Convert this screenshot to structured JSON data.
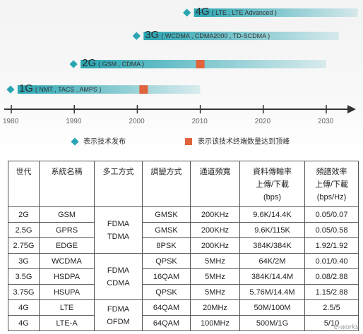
{
  "timeline": {
    "years": [
      "1980",
      "1990",
      "2000",
      "2010",
      "2020",
      "2030"
    ],
    "generations": [
      {
        "big": "1G",
        "detail": "( NMT , TACS , AMPS )",
        "start": 1981,
        "end": 2010,
        "peak": 2001
      },
      {
        "big": "2G",
        "detail": "( GSM , CDMA )",
        "start": 1991,
        "end": 2030,
        "peak": 2010
      },
      {
        "big": "3G",
        "detail": "( WCDMA , CDMA2000 , TD-SCDMA )",
        "start": 2001,
        "end": 2032,
        "peak": null
      },
      {
        "big": "4G",
        "detail": "( LTE , LTE Advanced )",
        "start": 2009,
        "end": 2035,
        "peak": null
      }
    ],
    "legend": {
      "diamond_label": "表示技术发布",
      "square_label": "表示该技术终端数量达到顶峰"
    },
    "colors": {
      "bar": "#2aa6b3",
      "peak": "#e0633c",
      "axis": "#333333"
    }
  },
  "table": {
    "headers": [
      [
        "世代"
      ],
      [
        "系統名稱"
      ],
      [
        "多工方式"
      ],
      [
        "調變方式"
      ],
      [
        "通道頻寬"
      ],
      [
        "資料傳輸率",
        "上傳/下載",
        "(bps)"
      ],
      [
        "頻譜效率",
        "上傳/下載",
        "(bps/Hz)"
      ]
    ],
    "rows": [
      {
        "gen": "2G",
        "name": "GSM",
        "mod": "GMSK",
        "bw": "200KHz",
        "rate": "9.6K/14.4K",
        "eff": "0.05/0.07"
      },
      {
        "gen": "2.5G",
        "name": "GPRS",
        "mod": "GMSK",
        "bw": "200KHz",
        "rate": "9.6K/115K",
        "eff": "0.05/0.58"
      },
      {
        "gen": "2.75G",
        "name": "EDGE",
        "mod": "8PSK",
        "bw": "200KHz",
        "rate": "384K/384K",
        "eff": "1.92/1.92"
      },
      {
        "gen": "3G",
        "name": "WCDMA",
        "mod": "QPSK",
        "bw": "5MHz",
        "rate": "64K/2M",
        "eff": "0.01/0.40"
      },
      {
        "gen": "3.5G",
        "name": "HSDPA",
        "mod": "16QAM",
        "bw": "5MHz",
        "rate": "384K/14.4M",
        "eff": "0.08/2.88"
      },
      {
        "gen": "3.75G",
        "name": "HSUPA",
        "mod": "QPSK",
        "bw": "5MHz",
        "rate": "5.76M/14.4M",
        "eff": "1.15/2.88"
      },
      {
        "gen": "4G",
        "name": "LTE",
        "mod": "64QAM",
        "bw": "20MHz",
        "rate": "50M/100M",
        "eff": "2.5/5"
      },
      {
        "gen": "4G",
        "name": "LTE-A",
        "mod": "64QAM",
        "bw": "100MHz",
        "rate": "500M/1G",
        "eff": "5/10"
      }
    ],
    "mux_groups": [
      [
        "FDMA",
        "TDMA"
      ],
      [
        "FDMA",
        "CDMA"
      ],
      [
        "FDMA",
        "OFDM"
      ]
    ]
  },
  "watermark": "e-works"
}
